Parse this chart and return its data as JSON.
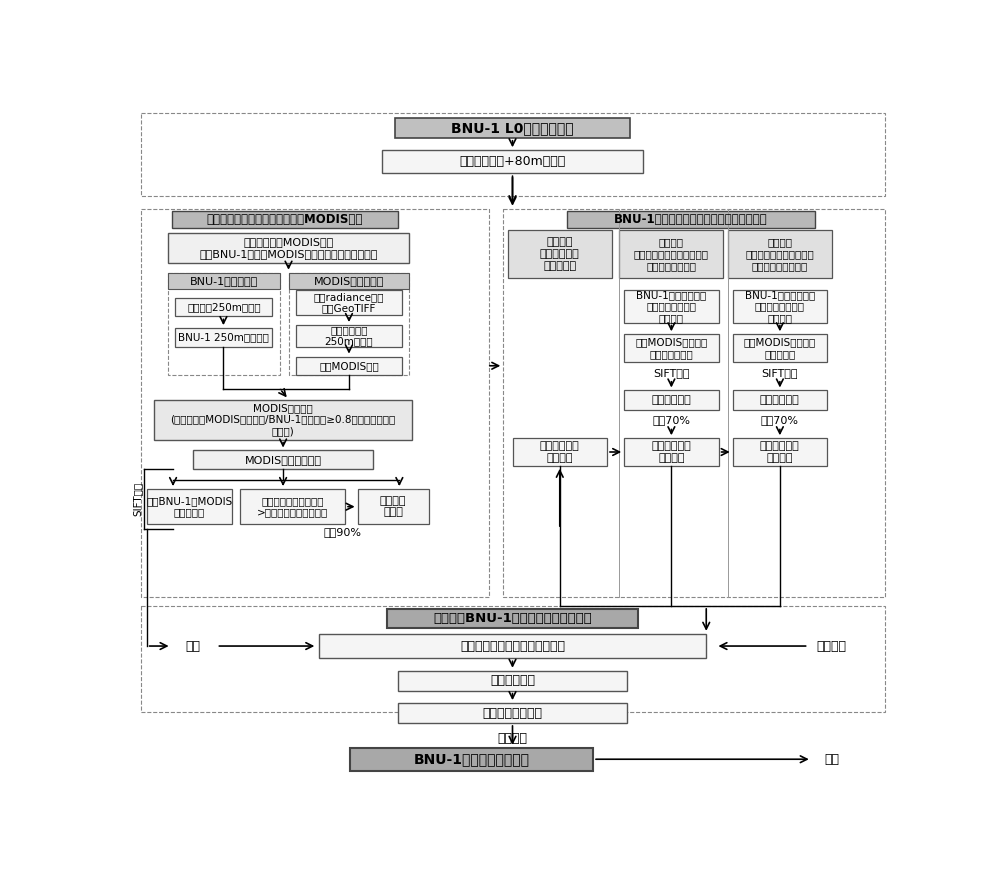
{
  "bg_color": "#ffffff",
  "fill_dark": "#b0b0b0",
  "fill_mid": "#d0d0d0",
  "fill_light": "#eeeeee",
  "fill_white": "#ffffff",
  "edge_color": "#333333",
  "dash_color": "#666666",
  "texts": {
    "top_title": "BNU-1 L0级影像预处理",
    "top_sub": "定义南极投影+80m分辞率",
    "sec1_title": "自动化择优筛选用于配准参考的MODIS影像",
    "sec2_title": "BNU-1卫星影像几何纠正地理坐标文件获取",
    "batch_dl": "批量下载同期MODIS影像\n制作BNU-1卫星与MODIS卫星影像第一数据索引表",
    "bnu1_pre": "BNU-1影像预处理",
    "modis_pre": "MODIS影像预处理",
    "resample": "重采样为250m分辞率",
    "crop_bnu": "BNU-1 250m数据裁剪",
    "radiance": "提取radiance波段\n输出GeoTIFF",
    "proj250": "定义南极投影\n250m分辞率",
    "crop_modis": "裁剪MODIS影像",
    "modis_filter1": "MODIS影像初筛\n(判断条件：MODIS影像范围/BNU-1波段范围≥0.8，得出第二数据\n索引表)",
    "modis_filter2": "MODIS影像二次筛选",
    "extract_pts": "提取BNU-1和MODIS\n影像同名点",
    "priority": "优先级：匹配点数量多\n>相同匹配点、时间接近",
    "idx3": "第三数据\n索引表",
    "keep90": "保留90%",
    "sift_label": "SIFT筛选",
    "scheme1_hdr": "方案一：\n整景影像提取\n同名点坐标",
    "scheme2_hdr": "方案二：\n影像分四部分增强处理后合\n并提取同名点坐标",
    "scheme3_hdr": "方案三：\n影像分九部分增强处理后\n合并提取同名点坐标",
    "bnu4parts": "BNU-1数据卫星影像\n分为四部分后分段\n线性增强",
    "modis4clip": "对应MODIS影像裁剪\n并分段线性增强",
    "sift2": "SIFT算法",
    "extract2": "同名点对提取",
    "keep70_2": "保留70%",
    "coord2": "第二地理纠正\n坐标文件",
    "bnu9parts": "BNU-1数据卫星影像\n分为九部分后分段\n线性增强",
    "modis9clip": "对应MODIS影像裁剪\n并线性增强",
    "sift3": "SIFT算法",
    "extract3": "同名点对提取",
    "keep70_3": "保留70%",
    "coord3": "第三地理纠正\n坐标文件",
    "coord1": "第一地理纠正\n坐标文件",
    "bottom_title": "择优确定BNU-1卫星影像几何纠正方案",
    "data_label": "数据",
    "coord_label": "坐标文件",
    "geom_correct": "影像几何纠正（采用三种方案）",
    "accuracy": "校正精度评估",
    "best_scheme": "筛选最优校正方案",
    "coord_label2": "坐标文件",
    "final_title": "BNU-1卫星影像几何纠正",
    "data_label2": "数据"
  }
}
